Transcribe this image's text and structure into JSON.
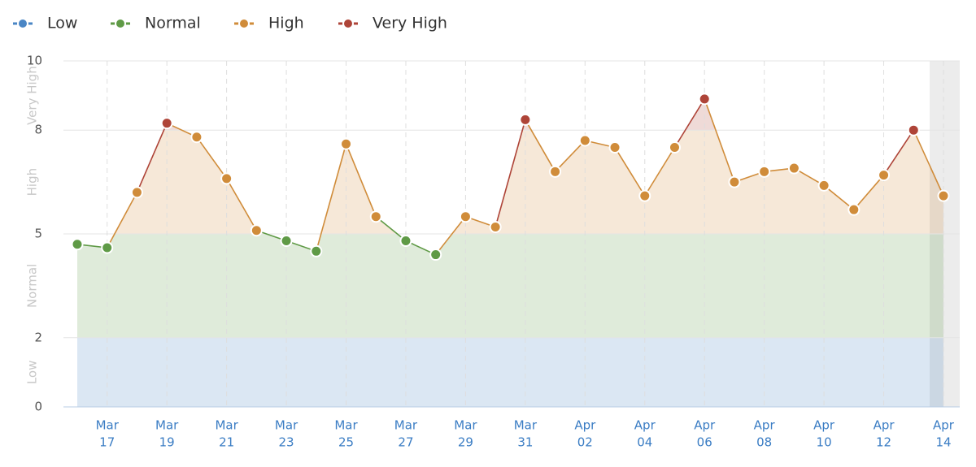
{
  "chart_data": {
    "type": "line",
    "levels": [
      {
        "name": "Low",
        "color": "#4a86c5",
        "from": 0,
        "to": 2
      },
      {
        "name": "Normal",
        "color": "#5f9a46",
        "from": 2,
        "to": 5
      },
      {
        "name": "High",
        "color": "#d08c3a",
        "from": 5,
        "to": 8
      },
      {
        "name": "Very High",
        "color": "#ae4438",
        "from": 8,
        "to": 10
      }
    ],
    "categories": [
      null,
      [
        "Mar",
        "17"
      ],
      null,
      [
        "Mar",
        "19"
      ],
      null,
      [
        "Mar",
        "21"
      ],
      null,
      [
        "Mar",
        "23"
      ],
      null,
      [
        "Mar",
        "25"
      ],
      null,
      [
        "Mar",
        "27"
      ],
      null,
      [
        "Mar",
        "29"
      ],
      null,
      [
        "Mar",
        "31"
      ],
      null,
      [
        "Apr",
        "02"
      ],
      null,
      [
        "Apr",
        "04"
      ],
      null,
      [
        "Apr",
        "06"
      ],
      null,
      [
        "Apr",
        "08"
      ],
      null,
      [
        "Apr",
        "10"
      ],
      null,
      [
        "Apr",
        "12"
      ],
      null,
      [
        "Apr",
        "14"
      ]
    ],
    "values": [
      4.7,
      4.6,
      6.2,
      8.2,
      7.8,
      6.6,
      5.1,
      4.8,
      4.5,
      7.6,
      5.5,
      4.8,
      4.4,
      5.5,
      5.2,
      8.3,
      6.8,
      7.7,
      7.5,
      6.1,
      7.5,
      8.9,
      6.5,
      6.8,
      6.9,
      6.4,
      5.7,
      6.7,
      8.0,
      6.1
    ],
    "ylim": [
      0,
      10
    ],
    "yticks": [
      0,
      2,
      5,
      8,
      10
    ],
    "grid": true
  }
}
